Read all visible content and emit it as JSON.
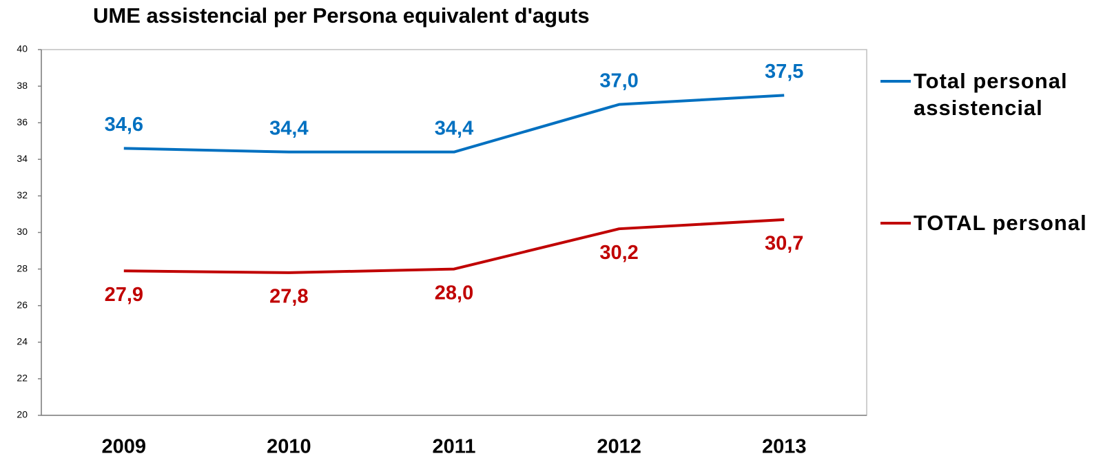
{
  "chart_data": {
    "type": "line",
    "title": "UME assistencial per Persona equivalent d'aguts",
    "categories": [
      "2009",
      "2010",
      "2011",
      "2012",
      "2013"
    ],
    "series": [
      {
        "name": "Total personal assistencial",
        "color": "#0070c0",
        "values": [
          34.6,
          34.4,
          34.4,
          37.0,
          37.5
        ],
        "value_labels": [
          "34,6",
          "34,4",
          "34,4",
          "37,0",
          "37,5"
        ]
      },
      {
        "name": "TOTAL personal",
        "color": "#c00000",
        "values": [
          27.9,
          27.8,
          28.0,
          30.2,
          30.7
        ],
        "value_labels": [
          "27,9",
          "27,8",
          "28,0",
          "30,2",
          "30,7"
        ]
      }
    ],
    "ylim": [
      20,
      40
    ],
    "yticks": [
      20,
      22,
      24,
      26,
      28,
      30,
      32,
      34,
      36,
      38,
      40
    ],
    "grid": false
  }
}
